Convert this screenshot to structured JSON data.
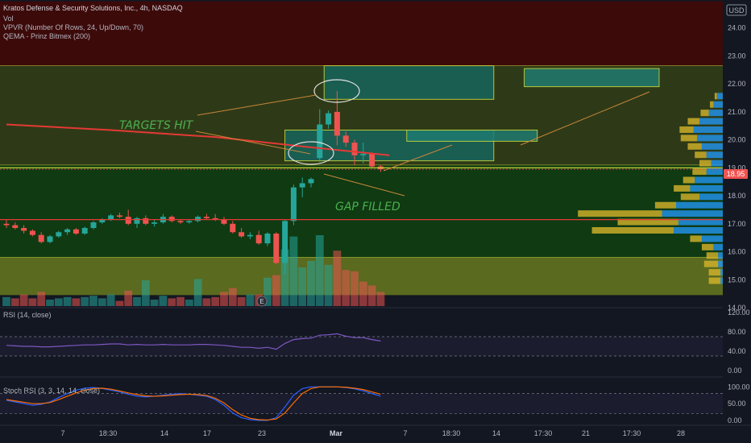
{
  "header": {
    "title": "Kratos Defense & Security Solutions, Inc., 4h, NASDAQ",
    "indicators": [
      "Vol",
      "VPVR (Number Of Rows, 24, Up/Down, 70)",
      "QEMA - Prinz Bitmex (200)"
    ],
    "currency": "USD"
  },
  "annotations": {
    "targets_hit": "TARGETS HIT",
    "gap_filled": "GAP FILLED"
  },
  "colors": {
    "up": "#26a69a",
    "down": "#ef5350",
    "ema": "#e53935",
    "zone_green": "#0f3a12",
    "zone_olive": "#5a6a1f",
    "zone_dark_red": "#3d0a0a",
    "target_box": "#1e7a70",
    "rsi_line": "#7e57c2",
    "stoch_k": "#2962ff",
    "stoch_d": "#ff6d00"
  },
  "chart_data": [
    {
      "type": "candlestick",
      "title": "Kratos Defense & Security Solutions, Inc., 4h, NASDAQ",
      "ylim": [
        14.0,
        25.0
      ],
      "y_ticks": [
        "24.00",
        "23.00",
        "22.00",
        "21.00",
        "20.00",
        "19.00",
        "18.00",
        "17.00",
        "16.00",
        "15.00",
        "14.00"
      ],
      "last_price": "18.95",
      "x_tick_labels": [
        "7",
        "18:30",
        "14",
        "17",
        "23",
        "Mar",
        "7",
        "18:30",
        "14",
        "17:30",
        "21",
        "17:30",
        "28"
      ],
      "candles": [
        {
          "o": 17.0,
          "h": 17.15,
          "l": 16.85,
          "c": 16.95
        },
        {
          "o": 16.95,
          "h": 17.05,
          "l": 16.8,
          "c": 16.85
        },
        {
          "o": 16.85,
          "h": 16.95,
          "l": 16.65,
          "c": 16.75
        },
        {
          "o": 16.75,
          "h": 16.8,
          "l": 16.55,
          "c": 16.6
        },
        {
          "o": 16.6,
          "h": 16.7,
          "l": 16.3,
          "c": 16.35
        },
        {
          "o": 16.35,
          "h": 16.6,
          "l": 16.3,
          "c": 16.55
        },
        {
          "o": 16.55,
          "h": 16.75,
          "l": 16.5,
          "c": 16.7
        },
        {
          "o": 16.7,
          "h": 16.85,
          "l": 16.6,
          "c": 16.8
        },
        {
          "o": 16.8,
          "h": 16.85,
          "l": 16.6,
          "c": 16.65
        },
        {
          "o": 16.65,
          "h": 16.9,
          "l": 16.6,
          "c": 16.85
        },
        {
          "o": 16.85,
          "h": 17.1,
          "l": 16.8,
          "c": 17.05
        },
        {
          "o": 17.05,
          "h": 17.2,
          "l": 17.0,
          "c": 17.15
        },
        {
          "o": 17.15,
          "h": 17.35,
          "l": 17.1,
          "c": 17.3
        },
        {
          "o": 17.3,
          "h": 17.4,
          "l": 17.2,
          "c": 17.25
        },
        {
          "o": 17.25,
          "h": 17.5,
          "l": 16.95,
          "c": 17.0
        },
        {
          "o": 17.0,
          "h": 17.25,
          "l": 16.85,
          "c": 17.2
        },
        {
          "o": 17.2,
          "h": 17.3,
          "l": 16.95,
          "c": 17.0
        },
        {
          "o": 17.0,
          "h": 17.15,
          "l": 16.9,
          "c": 17.05
        },
        {
          "o": 17.05,
          "h": 17.35,
          "l": 17.0,
          "c": 17.25
        },
        {
          "o": 17.25,
          "h": 17.3,
          "l": 17.05,
          "c": 17.1
        },
        {
          "o": 17.1,
          "h": 17.15,
          "l": 17.0,
          "c": 17.05
        },
        {
          "o": 17.05,
          "h": 17.15,
          "l": 17.0,
          "c": 17.1
        },
        {
          "o": 17.1,
          "h": 17.3,
          "l": 17.05,
          "c": 17.25
        },
        {
          "o": 17.25,
          "h": 17.35,
          "l": 17.15,
          "c": 17.2
        },
        {
          "o": 17.2,
          "h": 17.35,
          "l": 17.1,
          "c": 17.15
        },
        {
          "o": 17.15,
          "h": 17.25,
          "l": 16.95,
          "c": 17.0
        },
        {
          "o": 17.0,
          "h": 17.1,
          "l": 16.65,
          "c": 16.7
        },
        {
          "o": 16.7,
          "h": 16.85,
          "l": 16.5,
          "c": 16.55
        },
        {
          "o": 16.55,
          "h": 16.7,
          "l": 16.45,
          "c": 16.6
        },
        {
          "o": 16.6,
          "h": 16.75,
          "l": 16.25,
          "c": 16.3
        },
        {
          "o": 16.3,
          "h": 16.7,
          "l": 16.2,
          "c": 16.65
        },
        {
          "o": 16.65,
          "h": 16.7,
          "l": 15.55,
          "c": 15.6
        },
        {
          "o": 15.6,
          "h": 17.15,
          "l": 15.2,
          "c": 17.1
        },
        {
          "o": 17.1,
          "h": 18.4,
          "l": 16.95,
          "c": 18.3
        },
        {
          "o": 18.3,
          "h": 18.65,
          "l": 17.95,
          "c": 18.45
        },
        {
          "o": 18.45,
          "h": 18.65,
          "l": 18.3,
          "c": 18.6
        },
        {
          "o": 19.35,
          "h": 21.1,
          "l": 19.2,
          "c": 20.55
        },
        {
          "o": 20.55,
          "h": 21.05,
          "l": 20.4,
          "c": 20.95
        },
        {
          "o": 21.0,
          "h": 21.75,
          "l": 19.8,
          "c": 20.15
        },
        {
          "o": 20.15,
          "h": 20.3,
          "l": 19.75,
          "c": 19.9
        },
        {
          "o": 19.9,
          "h": 20.0,
          "l": 19.1,
          "c": 19.45
        },
        {
          "o": 19.45,
          "h": 19.9,
          "l": 19.15,
          "c": 19.5
        },
        {
          "o": 19.5,
          "h": 19.55,
          "l": 19.0,
          "c": 19.05
        },
        {
          "o": 19.05,
          "h": 19.1,
          "l": 18.85,
          "c": 18.95
        }
      ],
      "volume": [
        {
          "v": 0.35,
          "up": true
        },
        {
          "v": 0.3,
          "up": false
        },
        {
          "v": 0.45,
          "up": false
        },
        {
          "v": 0.3,
          "up": false
        },
        {
          "v": 0.55,
          "up": false
        },
        {
          "v": 0.25,
          "up": true
        },
        {
          "v": 0.3,
          "up": true
        },
        {
          "v": 0.35,
          "up": true
        },
        {
          "v": 0.3,
          "up": false
        },
        {
          "v": 0.35,
          "up": true
        },
        {
          "v": 0.4,
          "up": true
        },
        {
          "v": 0.3,
          "up": true
        },
        {
          "v": 0.45,
          "up": true
        },
        {
          "v": 0.2,
          "up": false
        },
        {
          "v": 0.6,
          "up": false
        },
        {
          "v": 0.35,
          "up": true
        },
        {
          "v": 1.0,
          "up": true
        },
        {
          "v": 0.25,
          "up": true
        },
        {
          "v": 0.4,
          "up": true
        },
        {
          "v": 0.3,
          "up": false
        },
        {
          "v": 0.35,
          "up": false
        },
        {
          "v": 0.25,
          "up": true
        },
        {
          "v": 1.05,
          "up": true
        },
        {
          "v": 0.3,
          "up": false
        },
        {
          "v": 0.35,
          "up": false
        },
        {
          "v": 0.55,
          "up": false
        },
        {
          "v": 0.7,
          "up": false
        },
        {
          "v": 0.35,
          "up": false
        },
        {
          "v": 0.45,
          "up": true
        },
        {
          "v": 0.45,
          "up": false
        },
        {
          "v": 1.1,
          "up": true
        },
        {
          "v": 1.2,
          "up": false
        },
        {
          "v": 2.2,
          "up": true
        },
        {
          "v": 2.7,
          "up": true
        },
        {
          "v": 1.5,
          "up": true
        },
        {
          "v": 1.75,
          "up": true
        },
        {
          "v": 2.75,
          "up": true
        },
        {
          "v": 1.6,
          "up": true
        },
        {
          "v": 2.15,
          "up": false
        },
        {
          "v": 1.4,
          "up": false
        },
        {
          "v": 1.35,
          "up": false
        },
        {
          "v": 0.95,
          "up": false
        },
        {
          "v": 0.8,
          "up": false
        },
        {
          "v": 0.55,
          "up": false
        }
      ],
      "ema_line": [
        [
          0,
          20.55
        ],
        [
          12,
          20.35
        ],
        [
          24,
          20.1
        ],
        [
          36,
          19.7
        ],
        [
          44,
          19.45
        ]
      ],
      "zones": [
        {
          "name": "resistance-zone-top",
          "y1": 22.65,
          "y2": 24.95,
          "color": "#3d0a0a"
        },
        {
          "name": "zone-olive-mid",
          "y1": 19.1,
          "y2": 22.65,
          "color": "#2e3a17"
        },
        {
          "name": "zone-green",
          "y1": 15.8,
          "y2": 19.1,
          "color": "#0f3a12"
        },
        {
          "name": "zone-olive-low",
          "y1": 14.45,
          "y2": 15.8,
          "color": "#5a6a1f"
        }
      ],
      "target_boxes": [
        {
          "name": "target-box-upper",
          "x1": 36.5,
          "x2": 56,
          "y1": 21.45,
          "y2": 22.65
        },
        {
          "name": "target-box-lower",
          "x1": 32,
          "x2": 56,
          "y1": 19.25,
          "y2": 20.35
        },
        {
          "name": "target-fill-1",
          "x1": 46,
          "x2": 61,
          "y1": 19.95,
          "y2": 20.35
        },
        {
          "name": "target-fill-2",
          "x1": 59.5,
          "x2": 75,
          "y1": 21.9,
          "y2": 22.55
        }
      ],
      "horizontal_lines": [
        {
          "name": "support-red-line",
          "y": 17.15,
          "color": "#e53935"
        },
        {
          "name": "gap-line",
          "y": 19.0,
          "color": "#c6d33a"
        }
      ],
      "vpvr": [
        {
          "price": 21.55,
          "up": 0.05,
          "down": 0.02
        },
        {
          "price": 21.25,
          "up": 0.08,
          "down": 0.03
        },
        {
          "price": 20.95,
          "up": 0.12,
          "down": 0.07
        },
        {
          "price": 20.65,
          "up": 0.2,
          "down": 0.1
        },
        {
          "price": 20.35,
          "up": 0.25,
          "down": 0.12
        },
        {
          "price": 20.05,
          "up": 0.22,
          "down": 0.14
        },
        {
          "price": 19.75,
          "up": 0.18,
          "down": 0.12
        },
        {
          "price": 19.45,
          "up": 0.14,
          "down": 0.1
        },
        {
          "price": 19.15,
          "up": 0.1,
          "down": 0.1
        },
        {
          "price": 18.85,
          "up": 0.14,
          "down": 0.12
        },
        {
          "price": 18.55,
          "up": 0.24,
          "down": 0.1
        },
        {
          "price": 18.25,
          "up": 0.28,
          "down": 0.14
        },
        {
          "price": 17.95,
          "up": 0.2,
          "down": 0.16
        },
        {
          "price": 17.65,
          "up": 0.4,
          "down": 0.18
        },
        {
          "price": 17.35,
          "up": 0.52,
          "down": 0.72
        },
        {
          "price": 17.05,
          "up": 0.38,
          "down": 0.52
        },
        {
          "price": 16.75,
          "up": 0.42,
          "down": 0.7
        },
        {
          "price": 16.45,
          "up": 0.18,
          "down": 0.1
        },
        {
          "price": 16.15,
          "up": 0.08,
          "down": 0.1
        },
        {
          "price": 15.85,
          "up": 0.04,
          "down": 0.1
        },
        {
          "price": 15.55,
          "up": 0.04,
          "down": 0.12
        },
        {
          "price": 15.25,
          "up": 0.02,
          "down": 0.1
        },
        {
          "price": 14.95,
          "up": 0.02,
          "down": 0.1
        }
      ]
    },
    {
      "type": "line",
      "title": "RSI (14, close)",
      "ylim": [
        -10,
        120
      ],
      "y_ticks": [
        "120.00",
        "80.00",
        "40.00",
        "0.00"
      ],
      "band": [
        30,
        70
      ],
      "series": [
        {
          "values": [
            52,
            51,
            50,
            50,
            49,
            49,
            50,
            51,
            52,
            53,
            53,
            54,
            55,
            55,
            53,
            54,
            53,
            53,
            54,
            53,
            53,
            53,
            54,
            54,
            53,
            52,
            50,
            48,
            48,
            46,
            48,
            44,
            56,
            64,
            66,
            67,
            73,
            74,
            76,
            71,
            68,
            68,
            64,
            61
          ]
        }
      ]
    },
    {
      "type": "line",
      "title": "Stoch RSI (3, 3, 14, 14, close)",
      "ylim": [
        -10,
        120
      ],
      "y_ticks": [
        "100.00",
        "50.00",
        "0.00"
      ],
      "band": [
        20,
        80
      ],
      "series": [
        {
          "values": [
            60,
            55,
            50,
            45,
            48,
            55,
            68,
            80,
            90,
            96,
            98,
            95,
            90,
            85,
            78,
            72,
            70,
            72,
            75,
            78,
            80,
            78,
            75,
            72,
            62,
            45,
            22,
            8,
            2,
            0,
            0,
            8,
            40,
            75,
            95,
            100,
            100,
            100,
            100,
            98,
            94,
            88,
            80,
            72
          ]
        },
        {
          "values": [
            62,
            58,
            54,
            50,
            50,
            53,
            62,
            72,
            82,
            90,
            95,
            96,
            93,
            88,
            82,
            77,
            73,
            72,
            73,
            75,
            77,
            78,
            77,
            74,
            66,
            52,
            32,
            16,
            6,
            2,
            1,
            4,
            22,
            52,
            80,
            95,
            100,
            100,
            100,
            99,
            96,
            92,
            85,
            78
          ]
        }
      ]
    }
  ]
}
